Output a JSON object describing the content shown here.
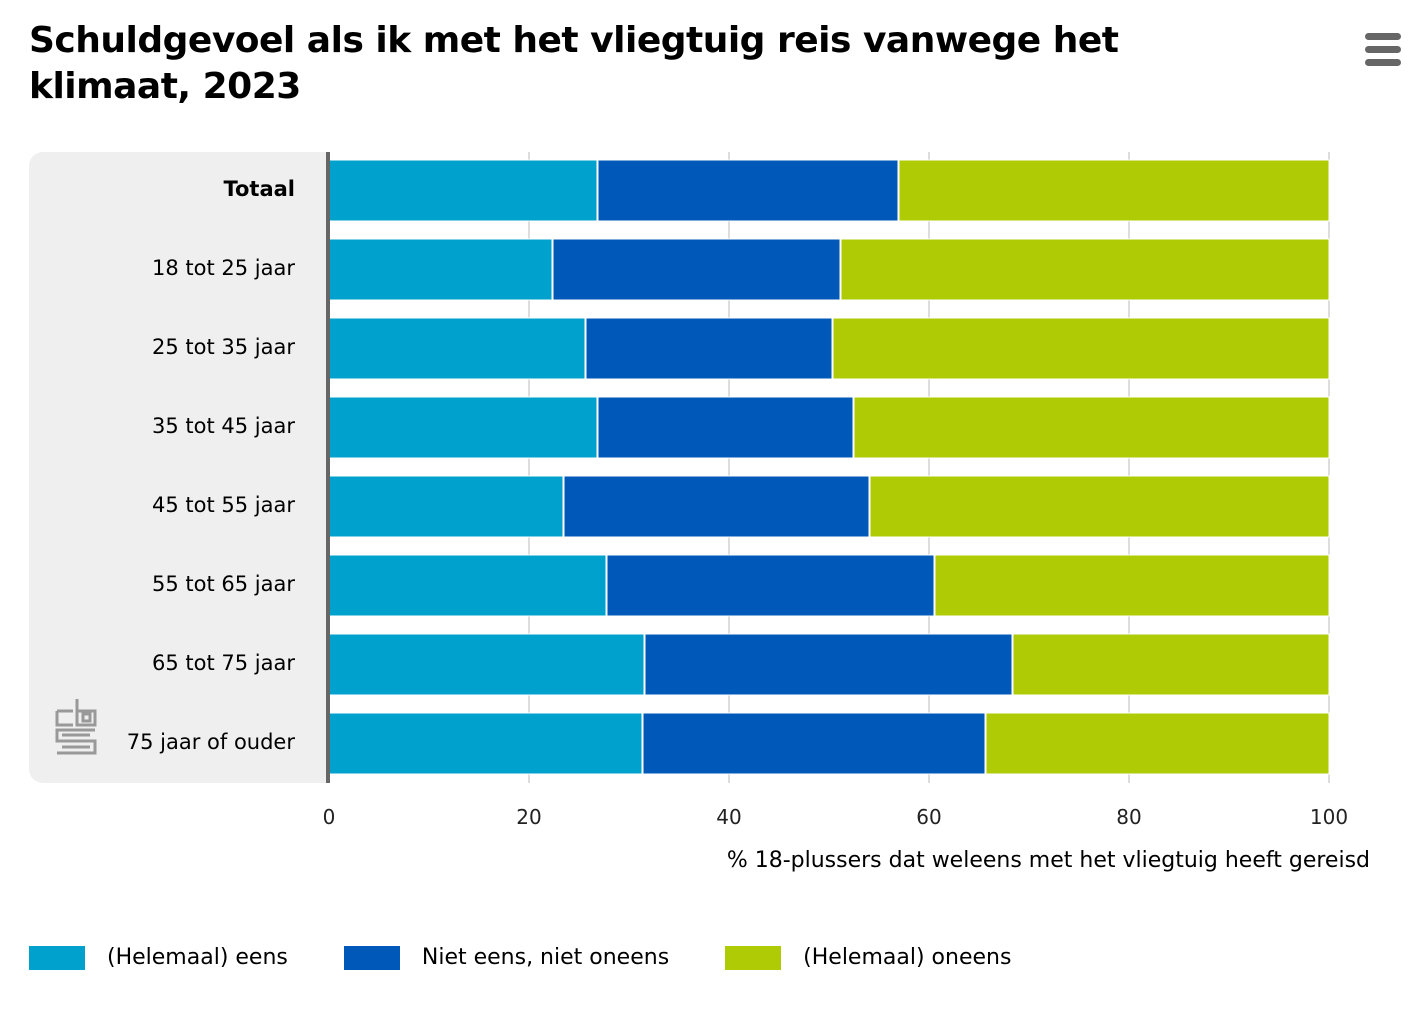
{
  "header": {
    "title": "Schuldgevoel als ik met het vliegtuig reis vanwege het klimaat, 2023",
    "menu_icon": "hamburger-menu-icon"
  },
  "branding": {
    "logo": "cbs-logo-icon"
  },
  "colors": {
    "eens": "#00A1CD",
    "neutraal": "#0058B8",
    "oneens": "#AFCB05"
  },
  "chart_data": {
    "type": "bar",
    "orientation": "horizontal",
    "stacked": true,
    "title": "Schuldgevoel als ik met het vliegtuig reis vanwege het klimaat, 2023",
    "xlabel": "% 18-plussers dat weleens met het vliegtuig heeft gereisd",
    "ylabel": "",
    "xlim": [
      0,
      100
    ],
    "xticks": [
      "0",
      "20",
      "40",
      "60",
      "80",
      "100"
    ],
    "grid": true,
    "legend_position": "bottom-left",
    "categories": [
      "Totaal",
      "18 tot 25 jaar",
      "25 tot 35 jaar",
      "35 tot 45 jaar",
      "45 tot 55 jaar",
      "55 tot 65 jaar",
      "65 tot 75 jaar",
      "75 jaar of ouder"
    ],
    "bold_categories": [
      "Totaal"
    ],
    "series": [
      {
        "name": "(Helemaal) eens",
        "color": "#00A1CD",
        "values": [
          26.8,
          22.3,
          25.6,
          26.8,
          23.4,
          27.7,
          31.5,
          31.3
        ]
      },
      {
        "name": "Niet eens, niet oneens",
        "color": "#0058B8",
        "values": [
          30.1,
          28.8,
          24.7,
          25.6,
          30.6,
          32.8,
          36.8,
          34.3
        ]
      },
      {
        "name": "(Helemaal) oneens",
        "color": "#AFCB05",
        "values": [
          43.1,
          48.9,
          49.7,
          47.6,
          46.0,
          39.5,
          31.7,
          34.4
        ]
      }
    ]
  }
}
